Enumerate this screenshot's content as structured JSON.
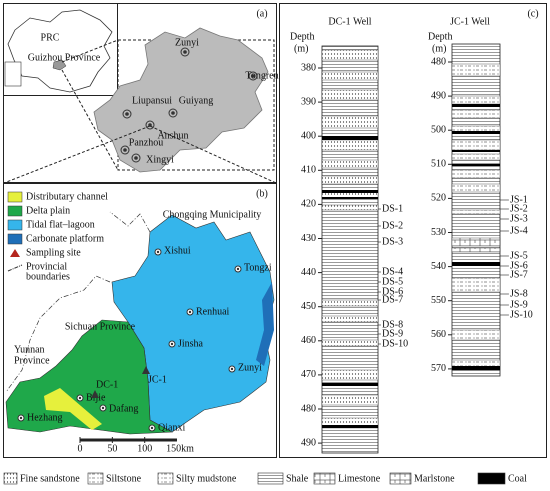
{
  "panel_a": {
    "label": "(a)",
    "inset": {
      "country": "PRC",
      "province": "Guizhou Province"
    },
    "cities": [
      "Zunyi",
      "Tongren",
      "Liupansui",
      "Guiyang",
      "Anshun",
      "Panzhou",
      "Xingyi"
    ]
  },
  "panel_b": {
    "label": "(b)",
    "legend": [
      [
        "Distributary channel"
      ],
      [
        "Delta plain"
      ],
      [
        "Tidal flat–lagoon"
      ],
      [
        "Carbonate platform"
      ],
      [
        "Sampling site"
      ],
      [
        "Provincial",
        "boundaries"
      ]
    ],
    "regions": [
      [
        "Chongqing Municipality"
      ],
      [
        "Sichuan Province"
      ],
      [
        "Yunnan",
        "Province"
      ]
    ],
    "cities": [
      "Xishui",
      "Tongzi",
      "Renhuai",
      "Jinsha",
      "Zunyi",
      "Bijie",
      "Dafang",
      "Hezhang",
      "Qianxi"
    ],
    "wells": [
      "DC-1",
      "JC-1"
    ],
    "scale": {
      "ticks": [
        0,
        50,
        100
      ],
      "end": "150km"
    }
  },
  "panel_c": {
    "label": "(c)",
    "wells": [
      {
        "name": "DC-1 Well",
        "depth_label": "Depth",
        "unit": "(m)",
        "ticks": [
          380,
          390,
          400,
          410,
          420,
          430,
          440,
          450,
          460,
          470,
          480,
          490
        ],
        "samples": [
          "DS-1",
          "DS-2",
          "DS-3",
          "DS-4",
          "DS-5",
          "DS-6",
          "DS-7",
          "DS-8",
          "DS-9",
          "DS-10"
        ]
      },
      {
        "name": "JC-1 Well",
        "depth_label": "Depth",
        "unit": "(m)",
        "ticks": [
          480,
          490,
          500,
          510,
          520,
          530,
          540,
          550,
          560,
          570
        ],
        "samples": [
          "JS-1",
          "JS-2",
          "JS-3",
          "JS-4",
          "JS-5",
          "JS-6",
          "JS-7",
          "JS-8",
          "JS-9",
          "JS-10"
        ]
      }
    ]
  },
  "lithology_legend": [
    "Fine sandstone",
    "Siltstone",
    "Silty mudstone",
    "Shale",
    "Limestone",
    "Marlstone",
    "Coal"
  ]
}
